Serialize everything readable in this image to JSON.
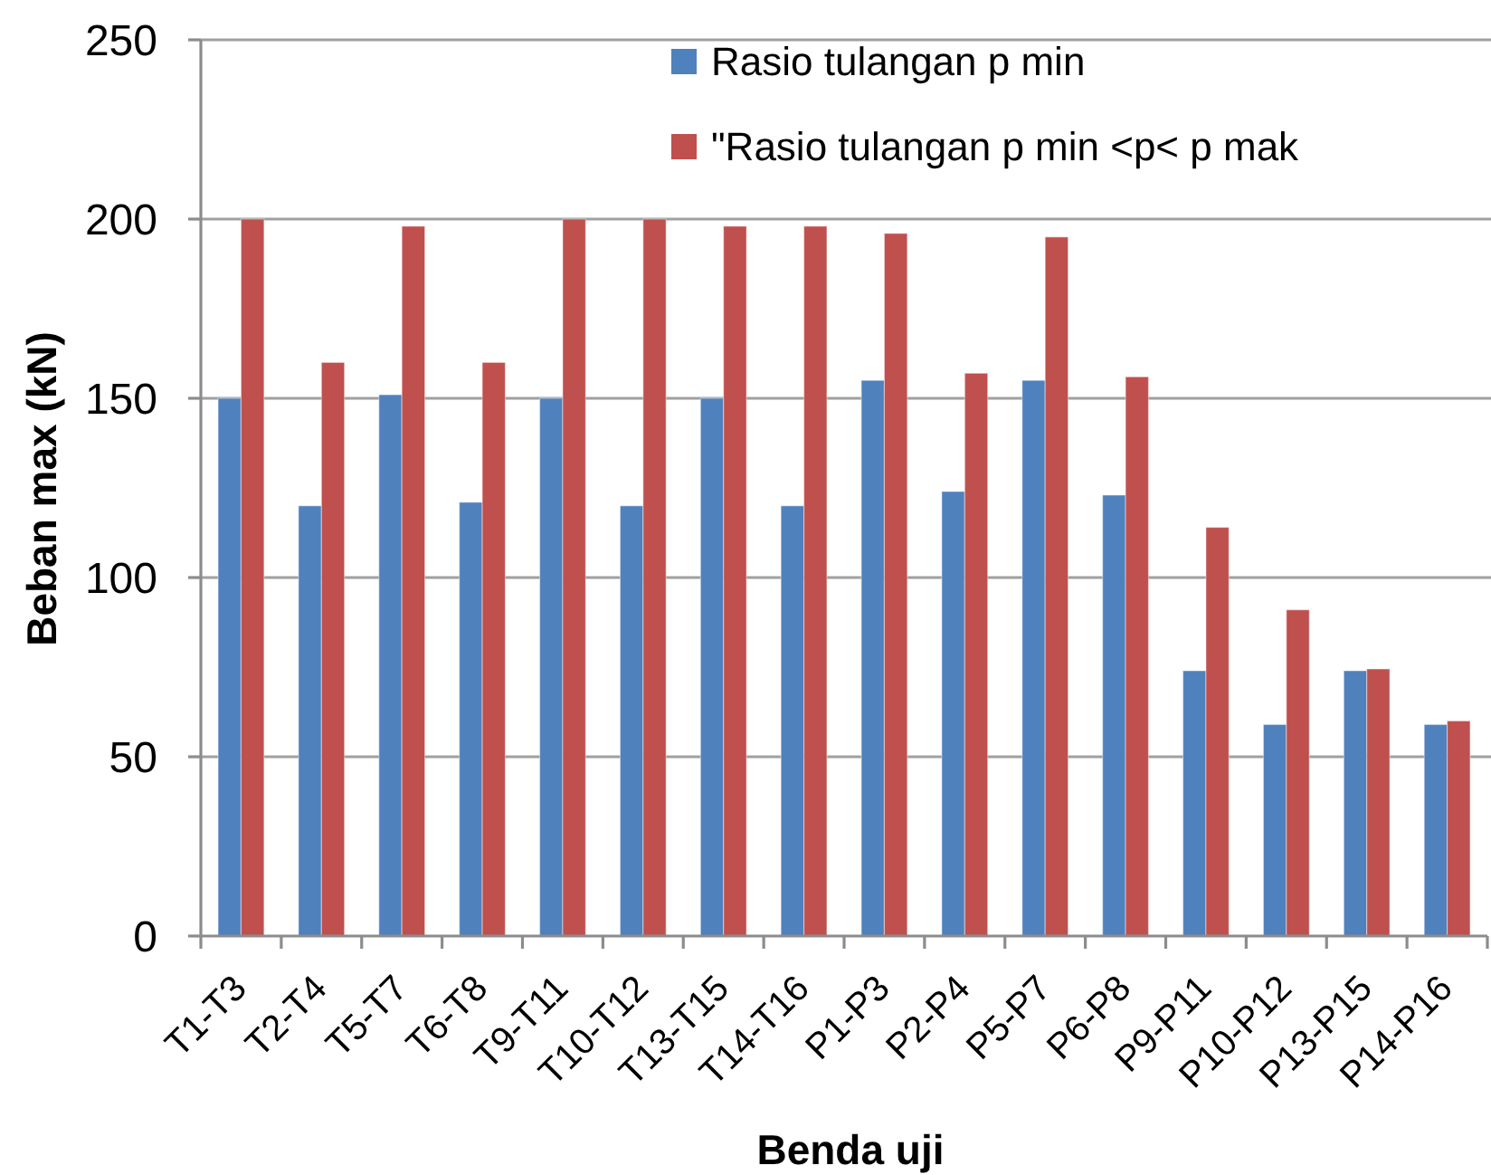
{
  "chart_data": {
    "type": "bar",
    "xlabel": "Benda uji",
    "ylabel": "Beban max (kN)",
    "categories": [
      "T1-T3",
      "T2-T4",
      "T5-T7",
      "T6-T8",
      "T9-T11",
      "T10-T12",
      "T13-T15",
      "T14-T16",
      "P1-P3",
      "P2-P4",
      "P5-P7",
      "P6-P8",
      "P9-P11",
      "P10-P12",
      "P13-P15",
      "P14-P16"
    ],
    "series": [
      {
        "name": "Rasio tulangan p min",
        "color": "#4f81bd",
        "values": [
          150,
          120,
          151,
          121,
          150,
          120,
          150,
          120,
          155,
          124,
          155,
          123,
          74,
          59,
          74,
          59
        ]
      },
      {
        "name": "\"Rasio tulangan p min <p< p mak",
        "color": "#c0504d",
        "values": [
          200,
          160,
          198,
          160,
          200,
          200,
          198,
          198,
          196,
          157,
          195,
          156,
          114,
          91,
          74.5,
          60
        ]
      }
    ],
    "ylim": [
      0,
      250
    ],
    "yticks": [
      0,
      50,
      100,
      150,
      200,
      250
    ],
    "grid": "y",
    "legend": "top"
  }
}
